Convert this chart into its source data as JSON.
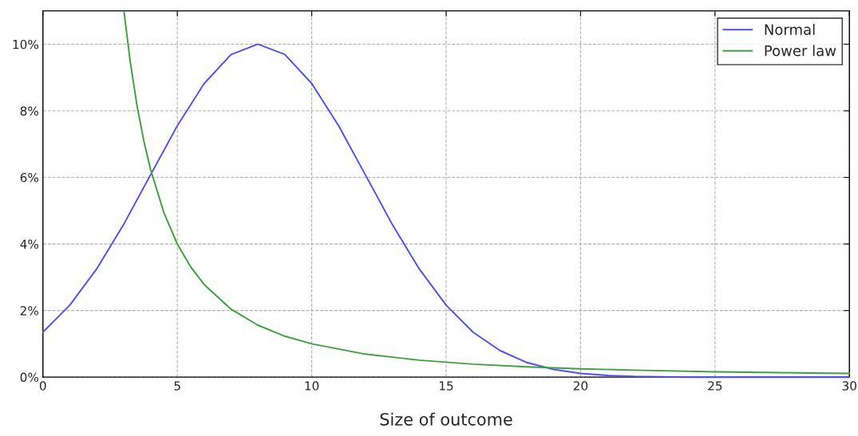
{
  "chart_data": {
    "type": "line",
    "xlabel": "Size of outcome",
    "xlim": [
      0,
      30
    ],
    "xticks": [
      0,
      5,
      10,
      15,
      20,
      25,
      30
    ],
    "ylim": [
      0,
      11
    ],
    "yticks": [
      {
        "value": 0,
        "label": "0%"
      },
      {
        "value": 2,
        "label": "2%"
      },
      {
        "value": 4,
        "label": "4%"
      },
      {
        "value": 6,
        "label": "6%"
      },
      {
        "value": 8,
        "label": "8%"
      },
      {
        "value": 10,
        "label": "10%"
      }
    ],
    "grid": true,
    "legend": "top right",
    "marker": "none",
    "line_style": "solid",
    "series": [
      {
        "name": "Normal",
        "color": "#5050f0",
        "x": [
          0,
          1,
          2,
          3,
          4,
          5,
          6,
          7,
          8,
          9,
          10,
          11,
          12,
          13,
          14,
          15,
          16,
          17,
          18,
          19,
          20,
          21,
          22,
          23,
          24,
          26,
          28,
          30
        ],
        "values": [
          1.35,
          2.16,
          3.25,
          4.58,
          6.07,
          7.55,
          8.82,
          9.69,
          10,
          9.69,
          8.82,
          7.55,
          6.07,
          4.58,
          3.25,
          2.16,
          1.35,
          0.8,
          0.44,
          0.23,
          0.11,
          0.05,
          0.02,
          0.01,
          0,
          0,
          0,
          0
        ]
      },
      {
        "name": "Power law",
        "color": "#40a040",
        "x": [
          3.02,
          3.25,
          3.5,
          3.75,
          4,
          4.5,
          5,
          5.5,
          6,
          7,
          8,
          9,
          10,
          12,
          14,
          16,
          18,
          20,
          22,
          25,
          30
        ],
        "values": [
          10.96,
          9.47,
          8.16,
          7.11,
          6.25,
          4.94,
          4.0,
          3.31,
          2.78,
          2.04,
          1.56,
          1.23,
          1.0,
          0.69,
          0.51,
          0.39,
          0.31,
          0.25,
          0.21,
          0.16,
          0.11
        ]
      }
    ]
  }
}
